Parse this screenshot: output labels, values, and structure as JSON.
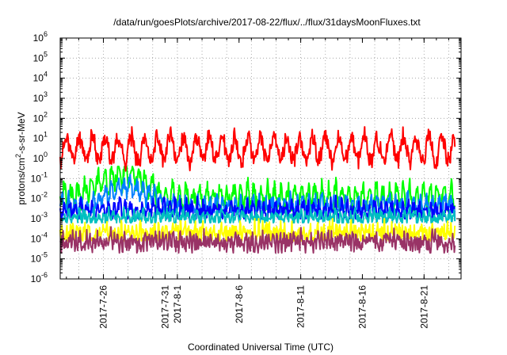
{
  "chart_data": {
    "type": "line",
    "title": "/data/run/goesPlots/archive/2017-08-22/flux/../flux/31daysMoonFluxes.txt",
    "xlabel": "Coordinated Universal Time (UTC)",
    "ylabel": {
      "base": "protons/cm",
      "sup": "2",
      "rest": "-s-sr-MeV"
    },
    "yscale": "log",
    "ylim_exp": [
      -6,
      6
    ],
    "y_ticks": [
      {
        "base": "10",
        "exp": "-6"
      },
      {
        "base": "10",
        "exp": "-5"
      },
      {
        "base": "10",
        "exp": "-4"
      },
      {
        "base": "10",
        "exp": "-3"
      },
      {
        "base": "10",
        "exp": "-2"
      },
      {
        "base": "10",
        "exp": "-1"
      },
      {
        "base": "10",
        "exp": "0"
      },
      {
        "base": "10",
        "exp": "1"
      },
      {
        "base": "10",
        "exp": "2"
      },
      {
        "base": "10",
        "exp": "3"
      },
      {
        "base": "10",
        "exp": "4"
      },
      {
        "base": "10",
        "exp": "5"
      },
      {
        "base": "10",
        "exp": "6"
      }
    ],
    "xlim": [
      "2017-07-22 12:00",
      "2017-08-24 00:00"
    ],
    "x_ticks": [
      {
        "label": "2017-7-26",
        "date": "2017-07-26"
      },
      {
        "label": "2017-7-31",
        "date": "2017-07-31"
      },
      {
        "label": "2017-8-1",
        "date": "2017-08-01"
      },
      {
        "label": "2017-8-6",
        "date": "2017-08-06"
      },
      {
        "label": "2017-8-11",
        "date": "2017-08-11"
      },
      {
        "label": "2017-8-16",
        "date": "2017-08-16"
      },
      {
        "label": "2017-8-21",
        "date": "2017-08-21"
      }
    ],
    "grid": true,
    "grid_style": "dotted",
    "legend": "none",
    "series": [
      {
        "color": "#ff0000",
        "level": 3,
        "amp": 1.7,
        "min": -0.9,
        "max": 1.8,
        "period": 1.05,
        "noise": 0.35,
        "seed": 11
      },
      {
        "color": "#00ff00",
        "level": 0.012,
        "amp": 1.4,
        "min": -2.6,
        "max": -0.4,
        "period": 0.55,
        "noise": 0.35,
        "seed": 23,
        "bump": {
          "start": "2017-07-24",
          "end": "2017-07-31",
          "peak": 0.25
        }
      },
      {
        "color": "#0080ff",
        "level": 0.004,
        "amp": 1.0,
        "min": -2.7,
        "max": -0.8,
        "period": 0.5,
        "noise": 0.3,
        "seed": 37,
        "bump": {
          "start": "2017-07-25",
          "end": "2017-07-31",
          "peak": 0.06
        }
      },
      {
        "color": "#0000ff",
        "level": 0.0025,
        "amp": 0.9,
        "min": -3.0,
        "max": -1.6,
        "period": 0.45,
        "noise": 0.3,
        "seed": 41
      },
      {
        "color": "#00c0c0",
        "level": 0.0012,
        "amp": 0.5,
        "min": -3.2,
        "max": -2.4,
        "period": 0.4,
        "noise": 0.25,
        "seed": 53
      },
      {
        "color": "#ffff00",
        "level": 0.0002,
        "amp": 0.5,
        "min": -4.1,
        "max": -3.0,
        "period": 0.3,
        "noise": 0.35,
        "seed": 67
      },
      {
        "color": "#993366",
        "level": 7e-05,
        "amp": 0.55,
        "min": -4.7,
        "max": -3.4,
        "period": 0.28,
        "noise": 0.35,
        "seed": 79
      }
    ]
  }
}
